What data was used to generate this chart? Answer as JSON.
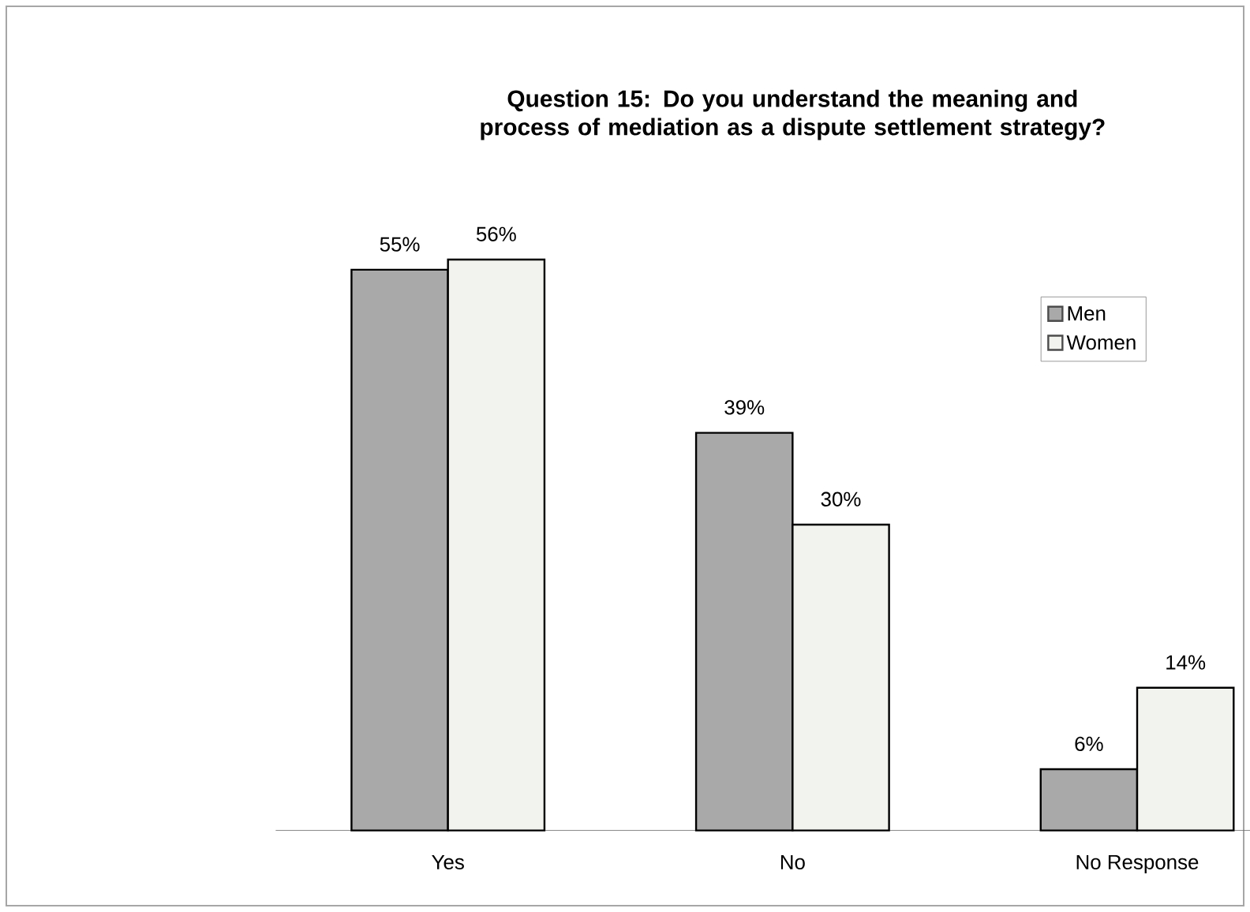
{
  "chart_data": {
    "type": "bar",
    "title": "Question 15:  Do you understand the meaning and process of mediation as a dispute settlement strategy?",
    "categories": [
      "Yes",
      "No",
      "No Response"
    ],
    "series": [
      {
        "name": "Men",
        "color": "#a9a9a9",
        "values": [
          55,
          39,
          6
        ],
        "value_labels": [
          "55%",
          "39%",
          "6%"
        ]
      },
      {
        "name": "Women",
        "color": "#f2f2ee",
        "values": [
          56,
          30,
          14
        ],
        "value_labels": [
          "56%",
          "30%",
          "14%"
        ]
      }
    ],
    "legend": "top right",
    "grid": false
  }
}
